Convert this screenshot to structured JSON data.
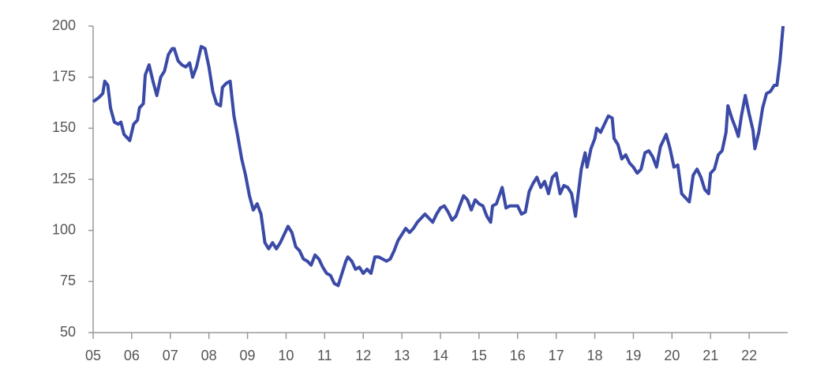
{
  "chart_data": {
    "type": "line",
    "x": [
      5.0,
      5.15,
      5.25,
      5.3,
      5.38,
      5.45,
      5.55,
      5.65,
      5.72,
      5.8,
      5.95,
      6.05,
      6.15,
      6.2,
      6.3,
      6.35,
      6.45,
      6.55,
      6.65,
      6.75,
      6.85,
      6.95,
      7.05,
      7.1,
      7.2,
      7.3,
      7.4,
      7.5,
      7.58,
      7.68,
      7.8,
      7.9,
      8.0,
      8.1,
      8.2,
      8.3,
      8.35,
      8.45,
      8.55,
      8.65,
      8.75,
      8.85,
      8.95,
      9.05,
      9.15,
      9.25,
      9.35,
      9.45,
      9.55,
      9.65,
      9.75,
      9.85,
      9.95,
      10.05,
      10.15,
      10.25,
      10.35,
      10.45,
      10.55,
      10.65,
      10.75,
      10.85,
      10.95,
      11.05,
      11.15,
      11.25,
      11.35,
      11.45,
      11.55,
      11.6,
      11.7,
      11.8,
      11.9,
      12.0,
      12.1,
      12.2,
      12.3,
      12.4,
      12.5,
      12.6,
      12.7,
      12.8,
      12.9,
      13.0,
      13.1,
      13.2,
      13.3,
      13.4,
      13.5,
      13.6,
      13.7,
      13.8,
      13.9,
      14.0,
      14.1,
      14.2,
      14.3,
      14.4,
      14.5,
      14.6,
      14.7,
      14.8,
      14.9,
      15.0,
      15.1,
      15.2,
      15.3,
      15.35,
      15.45,
      15.6,
      15.7,
      15.8,
      16.0,
      16.1,
      16.2,
      16.3,
      16.4,
      16.5,
      16.6,
      16.7,
      16.8,
      16.9,
      17.0,
      17.05,
      17.1,
      17.2,
      17.3,
      17.4,
      17.5,
      17.55,
      17.65,
      17.75,
      17.8,
      17.9,
      18.0,
      18.05,
      18.15,
      18.25,
      18.35,
      18.45,
      18.5,
      18.6,
      18.7,
      18.8,
      18.9,
      19.0,
      19.1,
      19.2,
      19.3,
      19.4,
      19.5,
      19.6,
      19.7,
      19.85,
      19.95,
      20.05,
      20.15,
      20.25,
      20.35,
      20.45,
      20.55,
      20.65,
      20.75,
      20.85,
      20.95,
      21.0,
      21.1,
      21.2,
      21.3,
      21.4,
      21.45,
      21.55,
      21.65,
      21.72,
      21.8,
      21.9,
      22.0,
      22.1,
      22.15,
      22.25,
      22.35,
      22.45,
      22.55,
      22.65,
      22.72,
      22.8,
      22.88
    ],
    "series": [
      {
        "color": "#3a4aa6",
        "values": [
          163,
          165,
          167,
          173,
          171,
          160,
          153,
          152,
          153,
          147,
          144,
          152,
          154,
          160,
          162,
          176,
          181,
          173,
          166,
          175,
          178,
          186,
          189,
          189,
          183,
          181,
          180,
          182,
          175,
          180,
          190,
          189,
          180,
          168,
          162,
          161,
          170,
          172,
          173,
          156,
          146,
          135,
          127,
          117,
          110,
          113,
          108,
          94,
          91,
          94,
          91,
          94,
          98,
          102,
          99,
          92,
          90,
          86,
          85,
          83,
          88,
          86,
          82,
          79,
          78,
          74,
          73,
          79,
          85,
          87,
          85,
          81,
          82,
          79,
          81,
          79,
          87,
          87,
          86,
          85,
          86,
          90,
          95,
          98,
          101,
          99,
          101,
          104,
          106,
          108,
          106,
          104,
          108,
          111,
          112,
          109,
          105,
          107,
          112,
          117,
          115,
          110,
          115,
          113,
          112,
          107,
          104,
          112,
          113,
          121,
          111,
          112,
          112,
          108,
          109,
          119,
          123,
          126,
          121,
          124,
          118,
          126,
          128,
          123,
          118,
          122,
          121,
          118,
          107,
          115,
          130,
          138,
          131,
          140,
          145,
          150,
          148,
          152,
          156,
          155,
          145,
          142,
          135,
          137,
          133,
          131,
          128,
          130,
          138,
          139,
          136,
          131,
          141,
          147,
          140,
          131,
          132,
          118,
          116,
          114,
          127,
          130,
          126,
          120,
          118,
          128,
          130,
          137,
          139,
          148,
          161,
          155,
          150,
          146,
          156,
          166,
          157,
          149,
          140,
          148,
          160,
          167,
          168,
          171,
          171,
          183,
          200
        ]
      }
    ],
    "xlim": [
      5,
      23
    ],
    "xticks": [
      {
        "value": 5,
        "label": "05"
      },
      {
        "value": 6,
        "label": "06"
      },
      {
        "value": 7,
        "label": "07"
      },
      {
        "value": 8,
        "label": "08"
      },
      {
        "value": 9,
        "label": "09"
      },
      10,
      11,
      12,
      13,
      14,
      15,
      16,
      17,
      18,
      19,
      20,
      21,
      22
    ],
    "ylim": [
      50,
      200
    ],
    "yticks": [
      50,
      75,
      100,
      125,
      150,
      175,
      200
    ],
    "grid": false
  }
}
